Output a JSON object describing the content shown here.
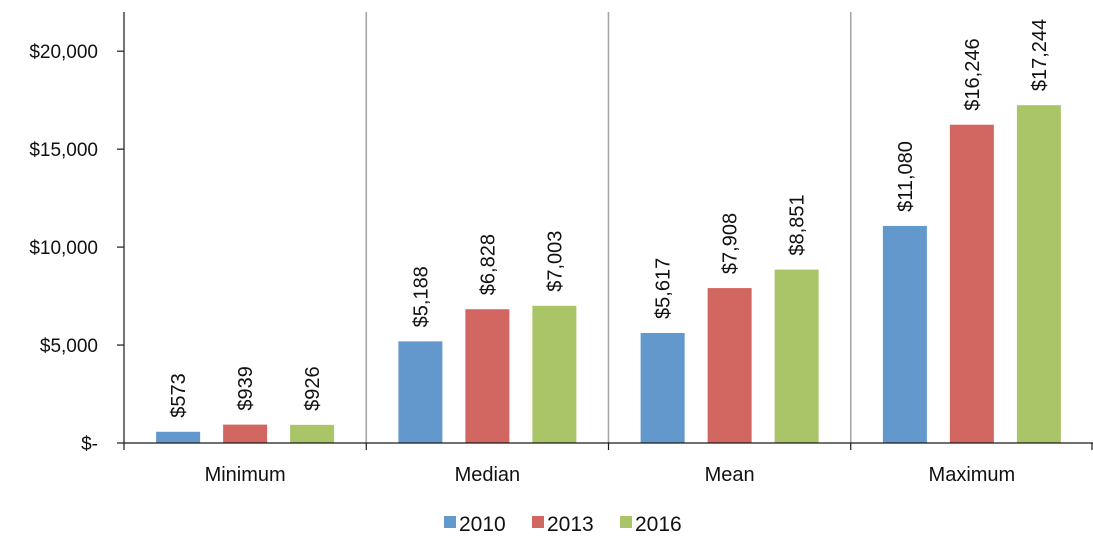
{
  "chart_data": {
    "type": "bar",
    "title": "",
    "xlabel": "",
    "ylabel": "",
    "categories": [
      "Minimum",
      "Median",
      "Mean",
      "Maximum"
    ],
    "series": [
      {
        "name": "2010",
        "color": "#6298CC",
        "values": [
          573,
          5188,
          5617,
          11080
        ]
      },
      {
        "name": "2013",
        "color": "#D26660",
        "values": [
          939,
          6828,
          7908,
          16246
        ]
      },
      {
        "name": "2016",
        "color": "#A9C568",
        "values": [
          926,
          7003,
          8851,
          17244
        ]
      }
    ],
    "data_labels": [
      [
        "$573",
        "$5,188",
        "$5,617",
        "$11,080"
      ],
      [
        "$939",
        "$6,828",
        "$7,908",
        "$16,246"
      ],
      [
        "$926",
        "$7,003",
        "$8,851",
        "$17,244"
      ]
    ],
    "y_ticks": [
      0,
      5000,
      10000,
      15000,
      20000
    ],
    "y_tick_labels": [
      "$-",
      "$5,000",
      "$10,000",
      "$15,000",
      "$20,000"
    ],
    "ylim": [
      0,
      22000
    ],
    "grid": false,
    "category_separators": true,
    "legend_position": "bottom-center",
    "data_label_rotation": "vertical"
  }
}
